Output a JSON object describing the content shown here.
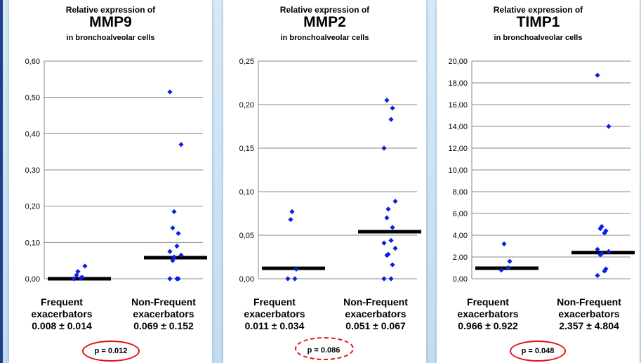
{
  "panels": [
    {
      "title_top": "Relative expression of",
      "gene": "MMP9",
      "title_bottom": "in bronchoalveolar cells",
      "yticks": [
        "0,60",
        "0,50",
        "0,40",
        "0,30",
        "0,20",
        "0,10",
        "0,00"
      ],
      "groups": [
        {
          "name_line1": "Frequent",
          "name_line2": "exacerbators",
          "stats": "0.008 ± 0.014"
        },
        {
          "name_line1": "Non-Frequent",
          "name_line2": "exacerbators",
          "stats": "0.069 ± 0.152"
        }
      ],
      "p_value": "p = 0.012",
      "p_style": "solid"
    },
    {
      "title_top": "Relative expression of",
      "gene": "MMP2",
      "title_bottom": "in bronchoalveolar cells",
      "yticks": [
        "0,25",
        "0,20",
        "0,15",
        "0,10",
        "0,05",
        "0,00"
      ],
      "groups": [
        {
          "name_line1": "Frequent",
          "name_line2": "exacerbators",
          "stats": "0.011 ± 0.034"
        },
        {
          "name_line1": "Non-Frequent",
          "name_line2": "exacerbators",
          "stats": "0.051 ± 0.067"
        }
      ],
      "p_value": "p = 0.086",
      "p_style": "dashed"
    },
    {
      "title_top": "Relative expression of",
      "gene": "TIMP1",
      "title_bottom": "in bronchoalveolar cells",
      "yticks": [
        "20,00",
        "18,00",
        "16,00",
        "14,00",
        "12,00",
        "10,00",
        "8,00",
        "6,00",
        "4,00",
        "2,00",
        "0,00"
      ],
      "groups": [
        {
          "name_line1": "Frequent",
          "name_line2": "exacerbators",
          "stats": "0.966 ± 0.922"
        },
        {
          "name_line1": "Non-Frequent",
          "name_line2": "exacerbators",
          "stats": "2.357 ± 4.804"
        }
      ],
      "p_value": "p = 0.048",
      "p_style": "solid"
    }
  ],
  "colors": {
    "point": "#0a1fe6",
    "median": "#000000",
    "ellipse": "#e01010",
    "grid": "#888888"
  },
  "chart_data": [
    {
      "type": "scatter",
      "title": "Relative expression of MMP9 in bronchoalveolar cells",
      "categories": [
        "Frequent exacerbators",
        "Non-Frequent exacerbators"
      ],
      "ylim": [
        0,
        0.6
      ],
      "grid": true,
      "series": [
        {
          "values": [
            0.0,
            0.002,
            0.004,
            0.01,
            0.02,
            0.035
          ],
          "median": 0.0
        },
        {
          "values": [
            0.0,
            0.0,
            0.0,
            0.05,
            0.06,
            0.065,
            0.075,
            0.09,
            0.125,
            0.14,
            0.185,
            0.37,
            0.515
          ],
          "median": 0.058
        }
      ],
      "p_value": 0.012
    },
    {
      "type": "scatter",
      "title": "Relative expression of MMP2 in bronchoalveolar cells",
      "categories": [
        "Frequent exacerbators",
        "Non-Frequent exacerbators"
      ],
      "ylim": [
        0,
        0.25
      ],
      "grid": true,
      "series": [
        {
          "values": [
            0.0,
            0.0,
            0.011,
            0.068,
            0.077
          ],
          "median": 0.012
        },
        {
          "values": [
            0.0,
            0.0,
            0.016,
            0.027,
            0.028,
            0.035,
            0.041,
            0.044,
            0.059,
            0.07,
            0.08,
            0.089,
            0.15,
            0.183,
            0.196,
            0.205
          ],
          "median": 0.054
        }
      ],
      "p_value": 0.086
    },
    {
      "type": "scatter",
      "title": "Relative expression of TIMP1 in bronchoalveolar cells",
      "categories": [
        "Frequent exacerbators",
        "Non-Frequent exacerbators"
      ],
      "ylim": [
        0,
        20
      ],
      "grid": true,
      "series": [
        {
          "values": [
            0.8,
            1.0,
            1.6,
            3.2
          ],
          "median": 0.97
        },
        {
          "values": [
            0.3,
            0.7,
            0.9,
            2.2,
            2.3,
            2.5,
            2.7,
            4.2,
            4.4,
            4.6,
            4.8,
            14.0,
            18.7
          ],
          "median": 2.4
        }
      ],
      "p_value": 0.048
    }
  ]
}
